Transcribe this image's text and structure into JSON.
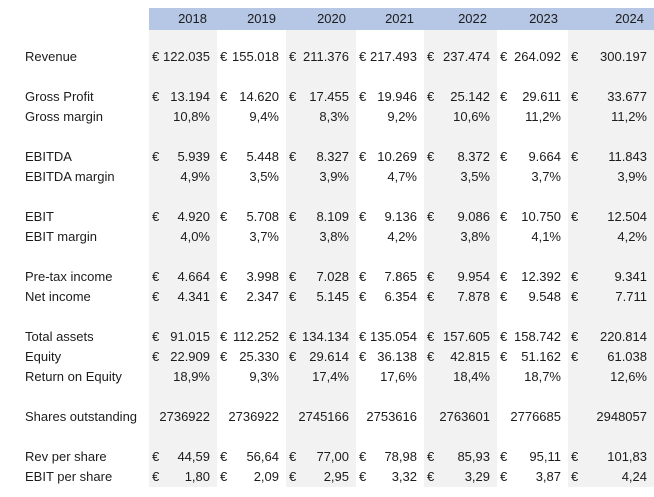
{
  "sheet": {
    "currency_symbol": "€",
    "colors": {
      "header_bg": "#B5C7E4",
      "stripe_bg": "#F2F2F2",
      "text": "#1C1C1C"
    },
    "years": [
      "2018",
      "2019",
      "2020",
      "2021",
      "2022",
      "2023",
      "2024"
    ],
    "rows": [
      {
        "label": "Revenue",
        "type": "currency",
        "gap_before": true,
        "values": [
          "122.035",
          "155.018",
          "211.376",
          "217.493",
          "237.474",
          "264.092",
          "300.197"
        ]
      },
      {
        "label": "Gross Profit",
        "type": "currency",
        "gap_before": true,
        "values": [
          "13.194",
          "14.620",
          "17.455",
          "19.946",
          "25.142",
          "29.611",
          "33.677"
        ]
      },
      {
        "label": "Gross margin",
        "type": "percent",
        "gap_before": false,
        "values": [
          "10,8%",
          "9,4%",
          "8,3%",
          "9,2%",
          "10,6%",
          "11,2%",
          "11,2%"
        ]
      },
      {
        "label": "EBITDA",
        "type": "currency",
        "gap_before": true,
        "values": [
          "5.939",
          "5.448",
          "8.327",
          "10.269",
          "8.372",
          "9.664",
          "11.843"
        ]
      },
      {
        "label": "EBITDA margin",
        "type": "percent",
        "gap_before": false,
        "values": [
          "4,9%",
          "3,5%",
          "3,9%",
          "4,7%",
          "3,5%",
          "3,7%",
          "3,9%"
        ]
      },
      {
        "label": "EBIT",
        "type": "currency",
        "gap_before": true,
        "values": [
          "4.920",
          "5.708",
          "8.109",
          "9.136",
          "9.086",
          "10.750",
          "12.504"
        ]
      },
      {
        "label": "EBIT margin",
        "type": "percent",
        "gap_before": false,
        "values": [
          "4,0%",
          "3,7%",
          "3,8%",
          "4,2%",
          "3,8%",
          "4,1%",
          "4,2%"
        ]
      },
      {
        "label": "Pre-tax income",
        "type": "currency",
        "gap_before": true,
        "values": [
          "4.664",
          "3.998",
          "7.028",
          "7.865",
          "9.954",
          "12.392",
          "9.341"
        ]
      },
      {
        "label": "Net income",
        "type": "currency",
        "gap_before": false,
        "values": [
          "4.341",
          "2.347",
          "5.145",
          "6.354",
          "7.878",
          "9.548",
          "7.711"
        ]
      },
      {
        "label": "Total assets",
        "type": "currency",
        "gap_before": true,
        "values": [
          "91.015",
          "112.252",
          "134.134",
          "135.054",
          "157.605",
          "158.742",
          "220.814"
        ]
      },
      {
        "label": "Equity",
        "type": "currency",
        "gap_before": false,
        "values": [
          "22.909",
          "25.330",
          "29.614",
          "36.138",
          "42.815",
          "51.162",
          "61.038"
        ]
      },
      {
        "label": "Return on Equity",
        "type": "percent",
        "gap_before": false,
        "values": [
          "18,9%",
          "9,3%",
          "17,4%",
          "17,6%",
          "18,4%",
          "18,7%",
          "12,6%"
        ]
      },
      {
        "label": "Shares outstanding",
        "type": "number",
        "gap_before": true,
        "values": [
          "2736922",
          "2736922",
          "2745166",
          "2753616",
          "2763601",
          "2776685",
          "2948057"
        ]
      },
      {
        "label": "Rev per share",
        "type": "currency",
        "gap_before": true,
        "values": [
          "44,59",
          "56,64",
          "77,00",
          "78,98",
          "85,93",
          "95,11",
          "101,83"
        ]
      },
      {
        "label": "EBIT per share",
        "type": "currency",
        "gap_before": false,
        "values": [
          "1,80",
          "2,09",
          "2,95",
          "3,32",
          "3,29",
          "3,87",
          "4,24"
        ]
      }
    ]
  }
}
